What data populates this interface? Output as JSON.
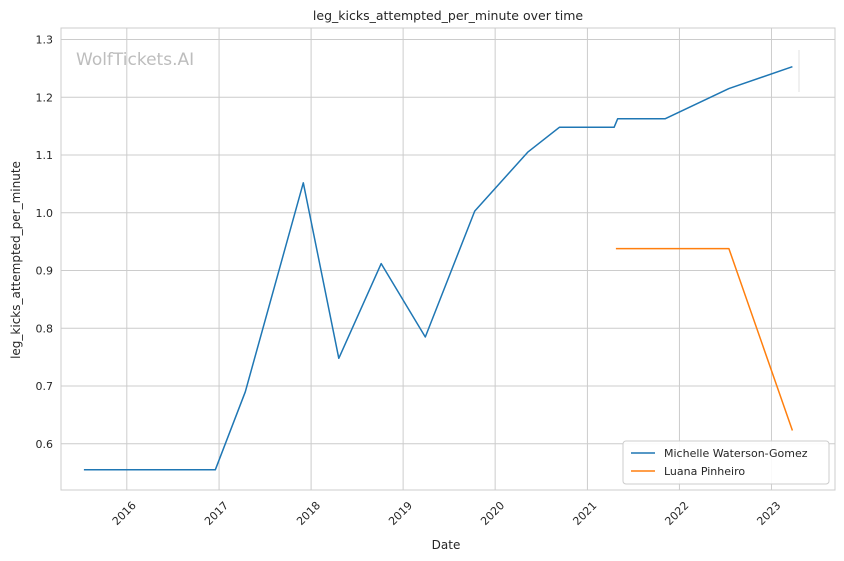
{
  "chart_data": {
    "type": "line",
    "title": "leg_kicks_attempted_per_minute over time",
    "xlabel": "Date",
    "ylabel": "leg_kicks_attempted_per_minute",
    "watermark": "WolfTickets.AI",
    "x_ticks": [
      "2016",
      "2017",
      "2018",
      "2019",
      "2020",
      "2021",
      "2022",
      "2023"
    ],
    "y_ticks": [
      "0.6",
      "0.7",
      "0.8",
      "0.9",
      "1.0",
      "1.1",
      "1.2",
      "1.3"
    ],
    "x_range": [
      "2015-04-15",
      "2023-09-10"
    ],
    "ylim": [
      0.52,
      1.32
    ],
    "grid": true,
    "legend_position": "bottom-right",
    "series": [
      {
        "name": "Michelle Waterson-Gomez",
        "color": "#1f77b4",
        "points": [
          [
            "2015-07-15",
            0.555
          ],
          [
            "2016-12-17",
            0.555
          ],
          [
            "2017-04-15",
            0.69
          ],
          [
            "2017-12-01",
            1.052
          ],
          [
            "2018-04-21",
            0.748
          ],
          [
            "2018-10-06",
            0.912
          ],
          [
            "2019-03-30",
            0.785
          ],
          [
            "2019-10-12",
            1.003
          ],
          [
            "2020-05-09",
            1.105
          ],
          [
            "2020-09-12",
            1.148
          ],
          [
            "2021-04-17",
            1.148
          ],
          [
            "2021-05-01",
            1.163
          ],
          [
            "2021-11-06",
            1.163
          ],
          [
            "2022-07-16",
            1.215
          ],
          [
            "2023-03-25",
            1.253
          ]
        ]
      },
      {
        "name": "Luana Pinheiro",
        "color": "#ff7f0e",
        "points": [
          [
            "2021-04-24",
            0.938
          ],
          [
            "2022-07-16",
            0.938
          ],
          [
            "2023-03-25",
            0.623
          ]
        ]
      }
    ]
  }
}
